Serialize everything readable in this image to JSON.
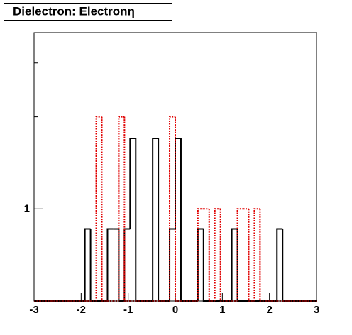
{
  "chart_data": {
    "type": "histogram",
    "title": "Dielectron: Electronη",
    "bins": [
      -3,
      -2.88,
      -2.76,
      -2.64,
      -2.52,
      -2.4,
      -2.28,
      -2.16,
      -2.04,
      -1.92,
      -1.8,
      -1.68,
      -1.56,
      -1.44,
      -1.32,
      -1.2,
      -1.08,
      -0.96,
      -0.84,
      -0.72,
      -0.6,
      -0.48,
      -0.36,
      -0.24,
      -0.12,
      0,
      0.12,
      0.24,
      0.36,
      0.48,
      0.6,
      0.72,
      0.84,
      0.96,
      1.08,
      1.2,
      1.32,
      1.44,
      1.56,
      1.68,
      1.8,
      1.92,
      2.04,
      2.16,
      2.28,
      2.4,
      2.52,
      2.64,
      2.76,
      2.88,
      3
    ],
    "series": [
      {
        "color": "#000000",
        "dashed": false,
        "values": [
          0,
          0,
          0,
          0,
          0,
          0,
          0,
          0,
          0,
          0.86,
          0,
          0,
          0,
          0.86,
          0.86,
          0,
          0.86,
          1.7,
          0,
          0,
          0,
          1.7,
          0,
          0,
          0.86,
          1.7,
          0,
          0,
          0,
          0.86,
          0,
          0,
          0,
          0,
          0,
          0.86,
          0,
          0,
          0,
          0,
          0,
          0,
          0,
          0.86,
          0,
          0,
          0,
          0,
          0,
          0
        ]
      },
      {
        "color": "#e00000",
        "dashed": true,
        "values": [
          0,
          0,
          0,
          0,
          0,
          0,
          0,
          0,
          0,
          0,
          0,
          2,
          0,
          0,
          0,
          2,
          0,
          0,
          0,
          0,
          0,
          0,
          0,
          0,
          2,
          0,
          0,
          0,
          0,
          1,
          1,
          0,
          1,
          0,
          0,
          0,
          1,
          1,
          0,
          1,
          0,
          0,
          0,
          0,
          0,
          0,
          0,
          0,
          0,
          0
        ]
      }
    ],
    "xlim": [
      -3,
      3
    ],
    "xticks": [
      -3,
      -2,
      -1,
      0,
      1,
      2,
      3
    ],
    "ylim": [
      0.5,
      3.77
    ],
    "yticks": [
      1
    ],
    "yminor": [
      2,
      3
    ],
    "log_y": true
  }
}
